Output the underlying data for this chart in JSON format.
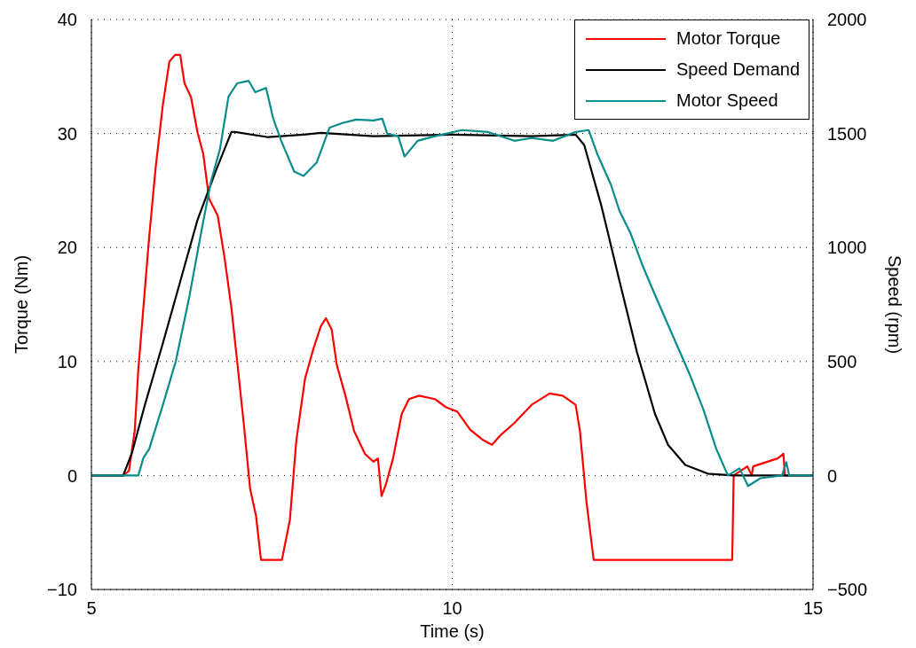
{
  "chart_data": {
    "type": "line",
    "xlabel": "Time (s)",
    "ylabel": "Torque (Nm)",
    "y2label": "Speed (rpm)",
    "xlim": [
      5,
      15
    ],
    "xticks": [
      5,
      10,
      15
    ],
    "ylim": [
      -10,
      40
    ],
    "yticks": [
      -10,
      0,
      10,
      20,
      30,
      40
    ],
    "y2lim": [
      -500,
      2000
    ],
    "y2ticks": [
      -500,
      0,
      500,
      1000,
      1500,
      2000
    ],
    "grid": true,
    "legend": "top right",
    "marker": "none",
    "line_style": "solid",
    "series": [
      {
        "name": "Motor Torque",
        "color": "#ff0000",
        "x": [
          5,
          5.44,
          5.52,
          5.6,
          5.65,
          5.72,
          5.8,
          5.89,
          5.99,
          6.08,
          6.16,
          6.23,
          6.29,
          6.38,
          6.47,
          6.55,
          6.63,
          6.75,
          6.84,
          6.94,
          7.02,
          7.11,
          7.2,
          7.28,
          7.35,
          7.64,
          7.75,
          7.84,
          7.96,
          8.08,
          8.18,
          8.25,
          8.33,
          8.4,
          8.52,
          8.64,
          8.79,
          8.91,
          8.97,
          9.02,
          9.08,
          9.18,
          9.3,
          9.4,
          9.54,
          9.76,
          9.91,
          10.07,
          10.25,
          10.43,
          10.55,
          10.68,
          10.86,
          11.1,
          11.35,
          11.53,
          11.71,
          11.77,
          11.86,
          11.96,
          13.88,
          13.9,
          14.09,
          14.15,
          14.17,
          14.51,
          14.59,
          14.61,
          15
        ],
        "values": [
          0,
          0,
          0.4,
          3.9,
          9.3,
          14.7,
          20.9,
          27,
          32.5,
          36.3,
          36.9,
          36.9,
          34.4,
          33.2,
          30.1,
          28.2,
          24.3,
          22.8,
          19.3,
          14.7,
          10,
          4.6,
          -1.2,
          -3.5,
          -7.4,
          -7.4,
          -3.9,
          3.1,
          8.5,
          11.2,
          13.1,
          13.8,
          12.8,
          9.7,
          7,
          3.9,
          1.9,
          1.2,
          1.5,
          -1.8,
          -0.8,
          1.5,
          5.4,
          6.7,
          7,
          6.7,
          6,
          5.6,
          4,
          3.1,
          2.7,
          3.6,
          4.6,
          6.2,
          7.2,
          7,
          6.2,
          3.9,
          -2.3,
          -7.4,
          -7.4,
          0,
          0.8,
          0,
          0.8,
          1.5,
          1.9,
          0,
          0
        ]
      },
      {
        "name": "Speed Demand",
        "color": "#000000",
        "axis": "y2",
        "x": [
          5,
          5.44,
          5.56,
          5.74,
          5.99,
          6.23,
          6.47,
          6.72,
          6.94,
          6.99,
          7.45,
          7.94,
          8.18,
          8.91,
          10,
          11.1,
          11.71,
          11.83,
          12.07,
          12.32,
          12.56,
          12.81,
          12.99,
          13.23,
          13.54,
          13.9,
          15
        ],
        "values": [
          0,
          0,
          97,
          309,
          580,
          850,
          1121,
          1333,
          1507,
          1507,
          1484,
          1495,
          1503,
          1488,
          1495,
          1488,
          1495,
          1449,
          1179,
          850,
          541,
          270,
          135,
          46,
          8,
          0,
          0
        ]
      },
      {
        "name": "Motor Speed",
        "color": "#088c8c",
        "axis": "y2",
        "x": [
          5,
          5.65,
          5.72,
          5.8,
          5.99,
          6.17,
          6.35,
          6.53,
          6.66,
          6.78,
          6.9,
          7.02,
          7.18,
          7.27,
          7.42,
          7.52,
          7.63,
          7.81,
          7.94,
          8.12,
          8.3,
          8.48,
          8.67,
          8.91,
          9.03,
          9.1,
          9.25,
          9.34,
          9.52,
          9.76,
          10.13,
          10.49,
          10.86,
          11.1,
          11.4,
          11.71,
          11.89,
          12.01,
          12.2,
          12.32,
          12.47,
          12.63,
          12.81,
          13.05,
          13.29,
          13.48,
          13.66,
          13.82,
          13.98,
          14.03,
          14.1,
          14.27,
          14.57,
          14.63,
          14.67,
          15
        ],
        "values": [
          0,
          0,
          77,
          116,
          309,
          502,
          773,
          1082,
          1294,
          1430,
          1662,
          1720,
          1731,
          1681,
          1700,
          1565,
          1468,
          1333,
          1314,
          1372,
          1526,
          1546,
          1561,
          1557,
          1565,
          1499,
          1488,
          1399,
          1468,
          1488,
          1515,
          1507,
          1468,
          1480,
          1468,
          1507,
          1515,
          1410,
          1275,
          1159,
          1063,
          927,
          792,
          618,
          444,
          290,
          116,
          0,
          31,
          0,
          -46,
          -12,
          0,
          58,
          0,
          0
        ]
      }
    ]
  }
}
